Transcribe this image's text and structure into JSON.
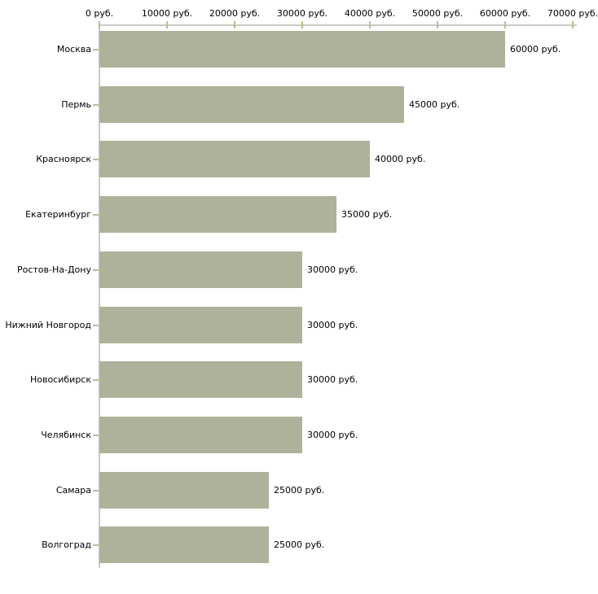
{
  "chart_data": {
    "type": "bar",
    "orientation": "horizontal",
    "title": "",
    "categories": [
      "Москва",
      "Пермь",
      "Красноярск",
      "Екатеринбург",
      "Ростов-На-Дону",
      "Нижний Новгород",
      "Новосибирск",
      "Челябинск",
      "Самара",
      "Волгоград"
    ],
    "values": [
      60000,
      45000,
      40000,
      35000,
      30000,
      30000,
      30000,
      30000,
      25000,
      25000
    ],
    "value_labels": [
      "60000 руб.",
      "45000 руб.",
      "40000 руб.",
      "35000 руб.",
      "30000 руб.",
      "30000 руб.",
      "30000 руб.",
      "30000 руб.",
      "25000 руб.",
      "25000 руб."
    ],
    "x_tick_labels": [
      "0 руб.",
      "10000 руб.",
      "20000 руб.",
      "30000 руб.",
      "40000 руб.",
      "50000 руб.",
      "60000 руб.",
      "70000 руб."
    ],
    "x_tick_values": [
      0,
      10000,
      20000,
      30000,
      40000,
      50000,
      60000,
      70000
    ],
    "xlim": [
      0,
      70000
    ],
    "xlabel": "",
    "ylabel": "",
    "legend": null,
    "grid": false,
    "colors": {
      "bar_fill": "#adb39a",
      "axis_line": "#c9c9c9",
      "tick_mark": "#bcbf88",
      "label_text": "#000000",
      "background": "#ffffff"
    }
  }
}
